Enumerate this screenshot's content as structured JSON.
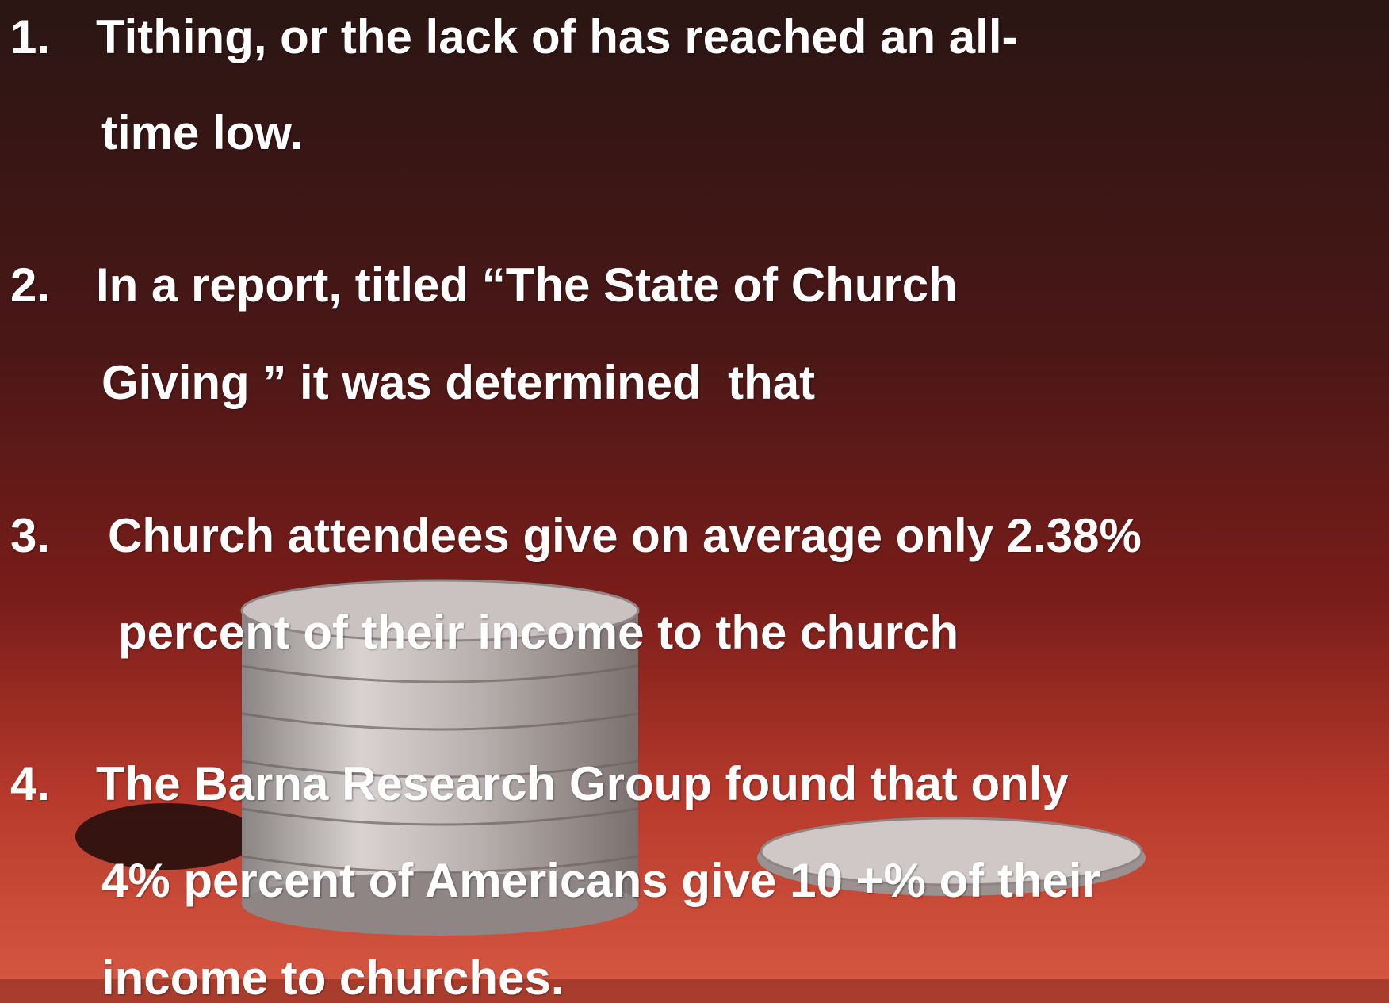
{
  "items": [
    {
      "number": "1.",
      "lines": [
        "Tithing, or the lack of has reached an all-",
        "time low."
      ]
    },
    {
      "number": "2.",
      "lines": [
        "In a report, titled “The State of Church",
        "Giving ” it was determined  that"
      ]
    },
    {
      "number": "3.",
      "lines": [
        "Church attendees give on average only 2.38%",
        "percent of their income to the church"
      ]
    },
    {
      "number": "4.",
      "lines": [
        "The Barna Research Group found that only",
        "4% percent of Americans give 10 +% of their",
        "income to churches."
      ]
    }
  ]
}
